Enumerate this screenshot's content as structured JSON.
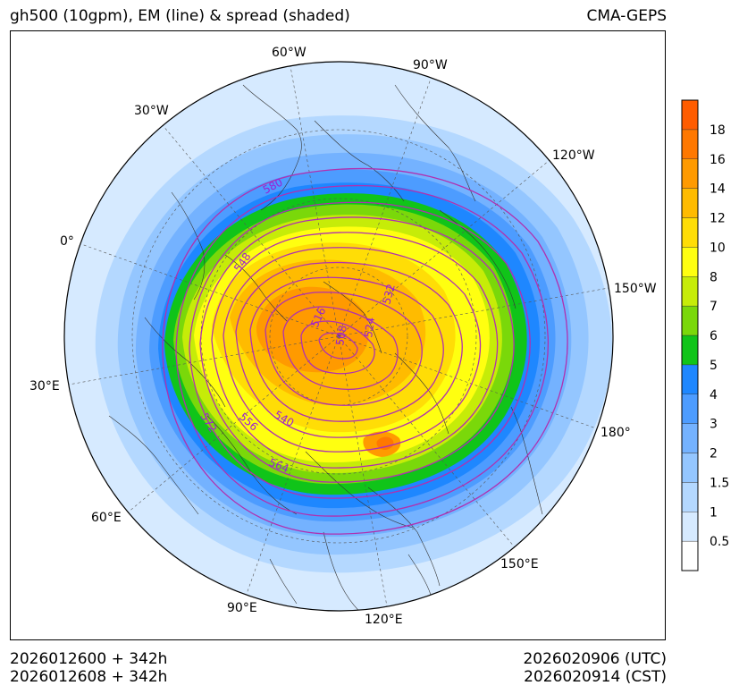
{
  "header": {
    "title_left": "gh500 (10gpm), EM (line) & spread (shaded)",
    "title_right": "CMA-GEPS"
  },
  "footer": {
    "init_utc": "2026012600 + 342h",
    "init_cst": "2026012608 + 342h",
    "valid_utc": "2026020906 (UTC)",
    "valid_cst": "2026020914 (CST)"
  },
  "map": {
    "projection": "north-polar-stereographic",
    "longitude_labels": [
      "60°W",
      "90°W",
      "120°W",
      "150°W",
      "180°",
      "150°E",
      "120°E",
      "90°E",
      "60°E",
      "30°E",
      "0°",
      "30°W"
    ],
    "contour_labels": [
      "580",
      "548",
      "516",
      "508",
      "524",
      "532",
      "572",
      "556",
      "540",
      "564"
    ],
    "contour_color": "#b030b0",
    "label_color": "#9a1fd6"
  },
  "colorbar": {
    "tick_labels": [
      "0.5",
      "1",
      "1.5",
      "2",
      "3",
      "4",
      "5",
      "6",
      "7",
      "8",
      "10",
      "12",
      "14",
      "16",
      "18"
    ],
    "colors": [
      "#ffffff",
      "#d6eaff",
      "#b4d8ff",
      "#94c6ff",
      "#74b2ff",
      "#4d9cff",
      "#1e87ff",
      "#10c419",
      "#7ad80a",
      "#c6ec08",
      "#ffff10",
      "#ffdd06",
      "#ffbb00",
      "#ff9a00",
      "#ff7800",
      "#ff5c00"
    ]
  }
}
